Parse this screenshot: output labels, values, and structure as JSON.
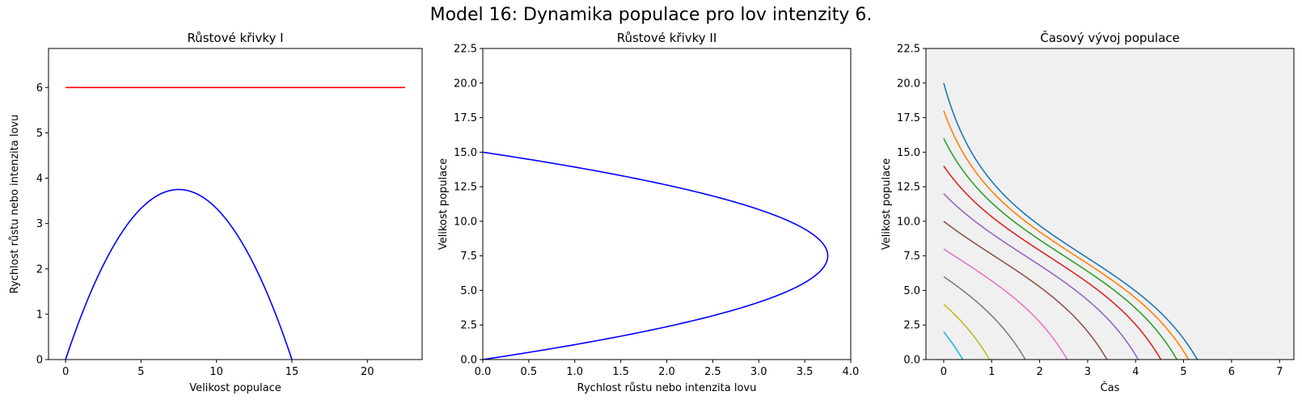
{
  "figure": {
    "title": "Model 16: Dynamika populace pro lov intenzity 6."
  },
  "chart_data": [
    {
      "type": "line",
      "title": "Růstové křivky I",
      "xlabel": "Velikost populace",
      "ylabel": "Rychlost růstu nebo intenzita lovu",
      "xlim": [
        -1.13,
        23.63
      ],
      "ylim": [
        0,
        6.86
      ],
      "xticks": [
        0,
        5,
        10,
        15,
        20
      ],
      "yticks": [
        0,
        1,
        2,
        3,
        4,
        5,
        6
      ],
      "background": "#ffffff",
      "grid": false,
      "series": [
        {
          "color": "#0000ff",
          "function": "growth",
          "r": 1,
          "K": 15,
          "x_range": [
            0,
            15
          ]
        },
        {
          "color": "#ff0000",
          "x": [
            0,
            22.5
          ],
          "y": [
            6,
            6
          ]
        }
      ]
    },
    {
      "type": "line",
      "title": "Růstové křivky II",
      "xlabel": "Rychlost růstu nebo intenzita lovu",
      "ylabel": "Velikost populace",
      "xlim": [
        0,
        4.0
      ],
      "ylim": [
        0,
        22.5
      ],
      "xticks": [
        0.0,
        0.5,
        1.0,
        1.5,
        2.0,
        2.5,
        3.0,
        3.5,
        4.0
      ],
      "yticks": [
        0.0,
        2.5,
        5.0,
        7.5,
        10.0,
        12.5,
        15.0,
        17.5,
        20.0,
        22.5
      ],
      "background": "#ffffff",
      "grid": false,
      "series": [
        {
          "color": "#0000ff",
          "function": "growth_inverted",
          "r": 1,
          "K": 15,
          "y_range": [
            0,
            15
          ]
        }
      ]
    },
    {
      "type": "line",
      "title": "Časový vývoj populace",
      "xlabel": "Čas",
      "ylabel": "Velikost populace",
      "xlim": [
        -0.37,
        7.3
      ],
      "ylim": [
        0,
        22.5
      ],
      "xticks": [
        0,
        1,
        2,
        3,
        4,
        5,
        6,
        7
      ],
      "yticks": [
        0.0,
        2.5,
        5.0,
        7.5,
        10.0,
        12.5,
        15.0,
        17.5,
        20.0,
        22.5
      ],
      "background": "#f0f0f0",
      "grid": false,
      "model": {
        "r": 1,
        "K": 15,
        "harvest": 6
      },
      "series": [
        {
          "x0": 20,
          "color": "#1f77b4"
        },
        {
          "x0": 18,
          "color": "#ff7f0e"
        },
        {
          "x0": 16,
          "color": "#2ca02c"
        },
        {
          "x0": 14,
          "color": "#d62728"
        },
        {
          "x0": 12,
          "color": "#9467bd"
        },
        {
          "x0": 10,
          "color": "#8c564b"
        },
        {
          "x0": 8,
          "color": "#e377c2"
        },
        {
          "x0": 6,
          "color": "#7f7f7f"
        },
        {
          "x0": 4,
          "color": "#bcbd22"
        },
        {
          "x0": 2,
          "color": "#17becf"
        }
      ]
    }
  ]
}
